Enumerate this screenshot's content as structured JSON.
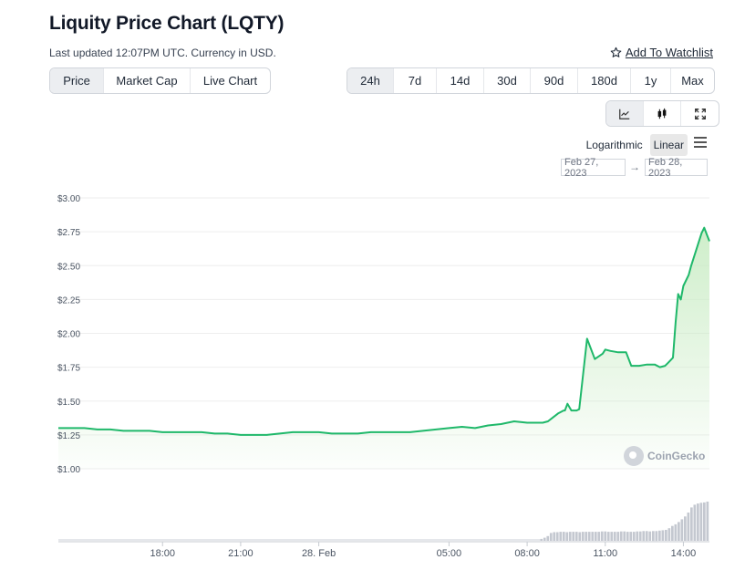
{
  "header": {
    "title": "Liquity Price Chart (LQTY)",
    "subtitle": "Last updated 12:07PM UTC. Currency in USD.",
    "watchlist_label": "Add To Watchlist"
  },
  "metric_tabs": [
    {
      "label": "Price",
      "active": true
    },
    {
      "label": "Market Cap",
      "active": false
    },
    {
      "label": "Live Chart",
      "active": false
    }
  ],
  "range_tabs": [
    {
      "label": "24h",
      "active": true
    },
    {
      "label": "7d",
      "active": false
    },
    {
      "label": "14d",
      "active": false
    },
    {
      "label": "30d",
      "active": false
    },
    {
      "label": "90d",
      "active": false
    },
    {
      "label": "180d",
      "active": false
    },
    {
      "label": "1y",
      "active": false
    },
    {
      "label": "Max",
      "active": false
    }
  ],
  "chart_type_buttons": [
    {
      "icon": "line-chart-icon",
      "active": true
    },
    {
      "icon": "candlestick-icon",
      "active": false
    },
    {
      "icon": "fullscreen-icon",
      "active": false
    }
  ],
  "scale": {
    "logarithmic_label": "Logarithmic",
    "linear_label": "Linear",
    "selected": "Linear"
  },
  "date_range": {
    "from": "Feb 27, 2023",
    "to": "Feb 28, 2023",
    "arrow": "→"
  },
  "watermark": "CoinGecko",
  "colors": {
    "line": "#1fb86a",
    "fill_top": "#c9ecc4",
    "volume": "#c4c8d0",
    "grid": "#eeeeee"
  },
  "chart_data": {
    "type": "area",
    "y_ticks": [
      "$3.00",
      "$2.75",
      "$2.50",
      "$2.25",
      "$2.00",
      "$1.75",
      "$1.50",
      "$1.25",
      "$1.00"
    ],
    "y_tick_values": [
      3.0,
      2.75,
      2.5,
      2.25,
      2.0,
      1.75,
      1.5,
      1.25,
      1.0
    ],
    "ylim": [
      1.0,
      3.0
    ],
    "x_ticks": [
      "18:00",
      "21:00",
      "28. Feb",
      "05:00",
      "08:00",
      "11:00",
      "14:00"
    ],
    "x_tick_hours": [
      18,
      21,
      24,
      29,
      32,
      35,
      38
    ],
    "xlim_hours": [
      14,
      39
    ],
    "grid": true,
    "series": [
      {
        "x": [
          14.0,
          14.5,
          15.0,
          15.5,
          16.0,
          16.5,
          17.0,
          17.5,
          18.0,
          18.5,
          19.0,
          19.5,
          20.0,
          20.5,
          21.0,
          21.5,
          22.0,
          22.5,
          23.0,
          23.5,
          24.0,
          24.5,
          25.0,
          25.5,
          26.0,
          26.5,
          27.0,
          27.5,
          28.0,
          28.5,
          29.0,
          29.5,
          30.0,
          30.5,
          31.0,
          31.5,
          32.0,
          32.3,
          32.6,
          32.8,
          33.0,
          33.2,
          33.4,
          33.45,
          33.55,
          33.7,
          33.9,
          34.0,
          34.3,
          34.6,
          34.9,
          35.0,
          35.2,
          35.5,
          35.8,
          36.0,
          36.3,
          36.6,
          36.9,
          37.1,
          37.3,
          37.4,
          37.5,
          37.6,
          37.7,
          37.8,
          37.9,
          38.0,
          38.2,
          38.3,
          38.5,
          38.7,
          38.8,
          38.9,
          39.0
        ],
        "y": [
          1.3,
          1.3,
          1.3,
          1.29,
          1.29,
          1.28,
          1.28,
          1.28,
          1.27,
          1.27,
          1.27,
          1.27,
          1.26,
          1.26,
          1.25,
          1.25,
          1.25,
          1.26,
          1.27,
          1.27,
          1.27,
          1.26,
          1.26,
          1.26,
          1.27,
          1.27,
          1.27,
          1.27,
          1.28,
          1.29,
          1.3,
          1.31,
          1.3,
          1.32,
          1.33,
          1.35,
          1.34,
          1.34,
          1.34,
          1.35,
          1.38,
          1.41,
          1.43,
          1.43,
          1.48,
          1.43,
          1.43,
          1.44,
          1.96,
          1.81,
          1.85,
          1.88,
          1.87,
          1.86,
          1.86,
          1.76,
          1.76,
          1.77,
          1.77,
          1.75,
          1.76,
          1.78,
          1.8,
          1.82,
          2.08,
          2.29,
          2.25,
          2.35,
          2.43,
          2.5,
          2.62,
          2.74,
          2.78,
          2.73,
          2.68
        ]
      }
    ],
    "volume": {
      "x_start_hours": 32.5,
      "x_end_hours": 39.0,
      "relative_values": [
        0.05,
        0.08,
        0.12,
        0.2,
        0.22,
        0.22,
        0.23,
        0.23,
        0.22,
        0.23,
        0.23,
        0.23,
        0.22,
        0.23,
        0.23,
        0.23,
        0.23,
        0.23,
        0.23,
        0.24,
        0.24,
        0.23,
        0.23,
        0.23,
        0.23,
        0.24,
        0.24,
        0.23,
        0.23,
        0.23,
        0.24,
        0.24,
        0.25,
        0.25,
        0.24,
        0.25,
        0.25,
        0.26,
        0.27,
        0.28,
        0.32,
        0.38,
        0.42,
        0.48,
        0.55,
        0.62,
        0.72,
        0.85,
        0.92,
        0.95,
        0.97,
        0.98,
        1.0
      ]
    }
  }
}
